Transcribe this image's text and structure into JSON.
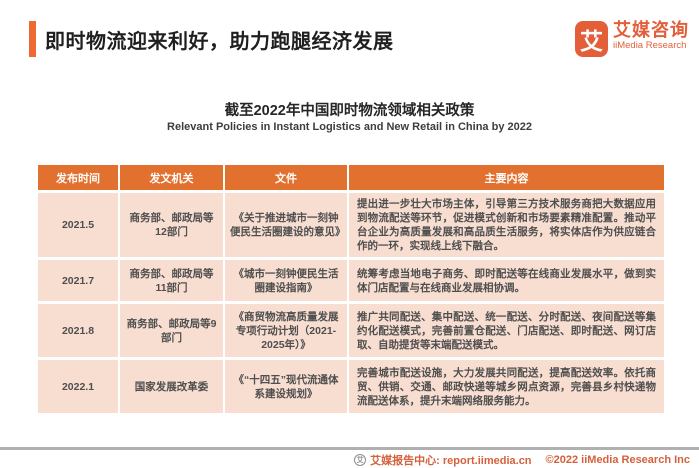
{
  "header": {
    "title": "即时物流迎来利好，助力跑腿经济发展",
    "accent_color": "#ED6A32"
  },
  "logo": {
    "mark": "艾",
    "name_cn": "艾媒咨询",
    "name_en": "iiMedia Research",
    "brand_color": "#E35F3A"
  },
  "subtitle": {
    "cn": "截至2022年中国即时物流领域相关政策",
    "en": "Relevant Policies in Instant Logistics and New Retail in China by 2022"
  },
  "table": {
    "header_bg": "#E2702F",
    "row_bg": "#F8DED1",
    "columns": {
      "date": "发布时间",
      "agency": "发文机关",
      "document": "文件",
      "content": "主要内容"
    },
    "rows": [
      {
        "date": "2021.5",
        "agency": "商务部、邮政局等12部门",
        "document": "《关于推进城市一刻钟便民生活圈建设的意见》",
        "content": "提出进一步壮大市场主体，引导第三方技术服务商把大数据应用到物流配送等环节，促进模式创新和市场要素精准配置。推动平台企业为高质量发展和高品质生活服务，将实体店作为供应链合作的一环，实现线上线下融合。"
      },
      {
        "date": "2021.7",
        "agency": "商务部、邮政局等11部门",
        "document": "《城市一刻钟便民生活圈建设指南》",
        "content": "统筹考虑当地电子商务、即时配送等在线商业发展水平，做到实体门店配置与在线商业发展相协调。"
      },
      {
        "date": "2021.8",
        "agency": "商务部、邮政局等9部门",
        "document": "《商贸物流高质量发展专项行动计划（2021-2025年）》",
        "content": "推广共同配送、集中配送、统一配送、分时配送、夜间配送等集约化配送模式，完善前置仓配送、门店配送、即时配送、网订店取、自助提货等末端配送模式。"
      },
      {
        "date": "2022.1",
        "agency": "国家发展改革委",
        "document": "《“十四五”现代流通体系建设规划》",
        "content": "完善城市配送设施，大力发展共同配送，提高配送效率。依托商贸、供销、交通、邮政快递等城乡网点资源，完善县乡村快递物流配送体系，提升末端网络服务能力。"
      }
    ]
  },
  "footer": {
    "source": "艾媒报告中心: report.iimedia.cn",
    "copyright": "©2022  iiMedia Research Inc",
    "globe_icon": "艾"
  }
}
